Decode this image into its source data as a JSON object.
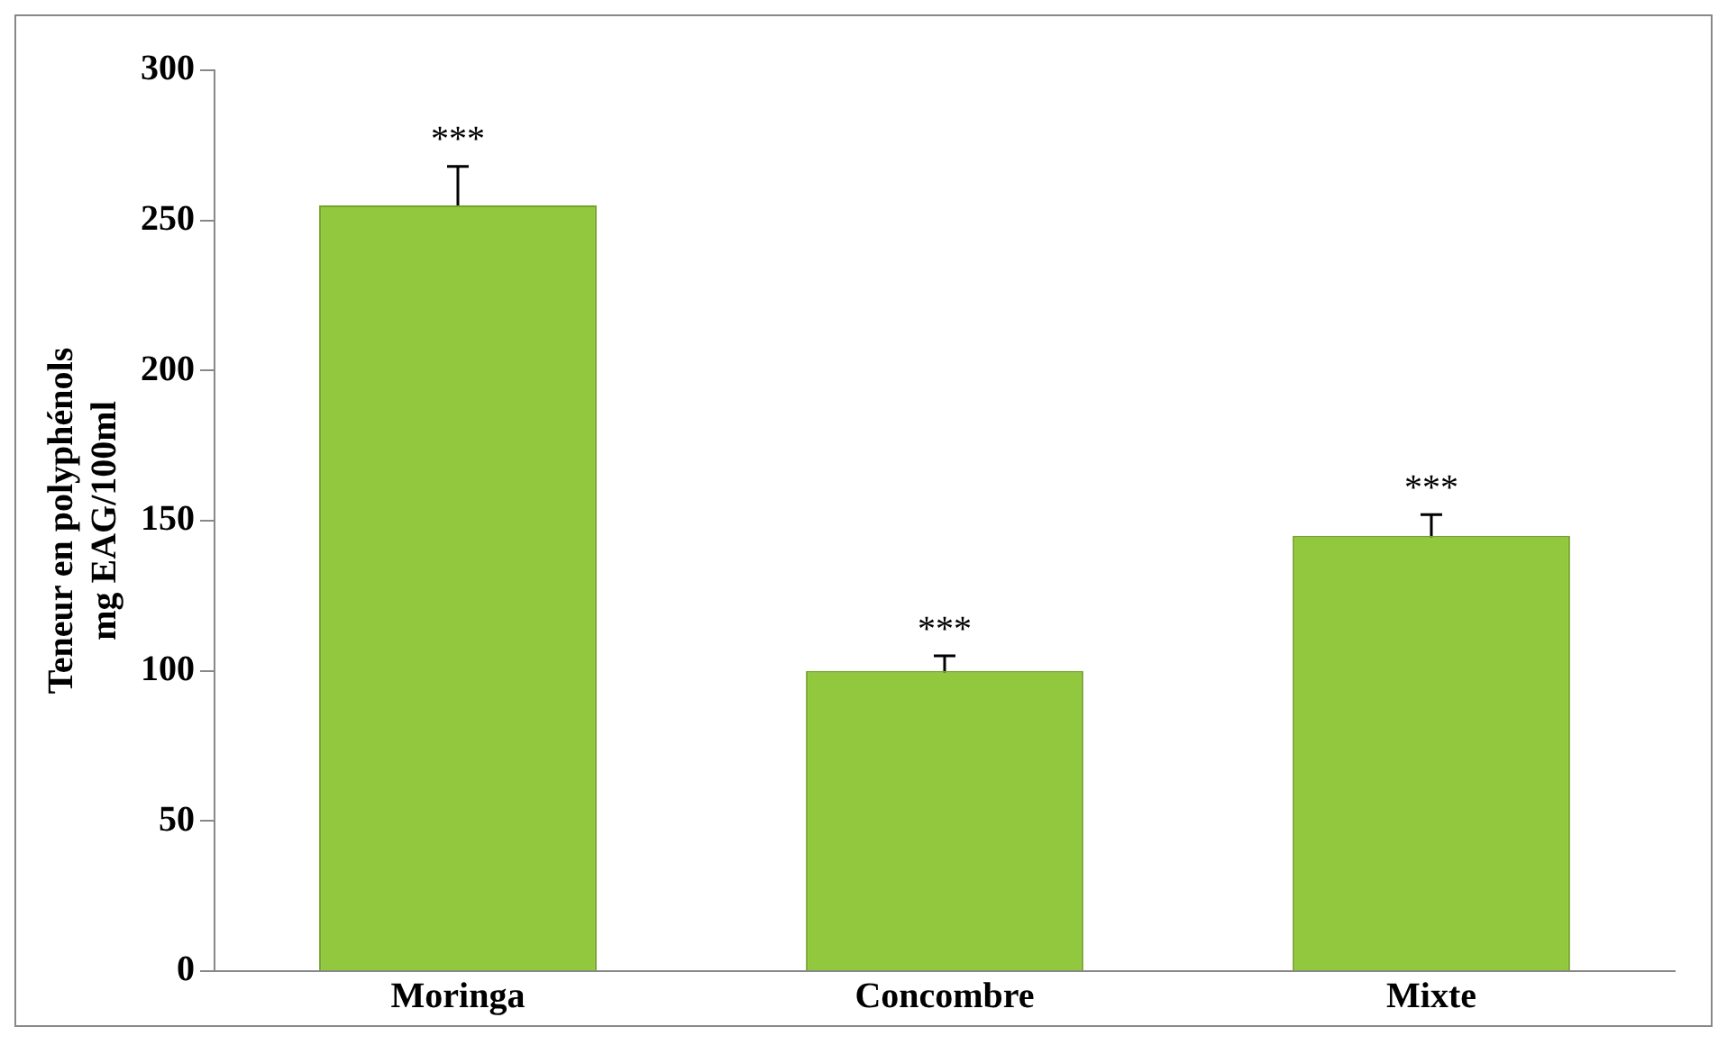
{
  "chart_data": {
    "type": "bar",
    "ylabel": "Teneur en polyphénols\nmg EAG/100ml",
    "categories": [
      "Moringa",
      "Concombre",
      "Mixte"
    ],
    "values": [
      255,
      100,
      145
    ],
    "errors": [
      13,
      5,
      7
    ],
    "color": "#92c83e",
    "ylim": [
      0,
      300
    ],
    "yticks": [
      0,
      50,
      100,
      150,
      200,
      250,
      300
    ],
    "grid": false,
    "legend": false,
    "annotations": [
      {
        "text": "***",
        "x": "Moringa",
        "y": 268
      },
      {
        "text": "***",
        "x": "Concombre",
        "y": 105
      },
      {
        "text": "***",
        "x": "Mixte",
        "y": 152
      }
    ]
  }
}
